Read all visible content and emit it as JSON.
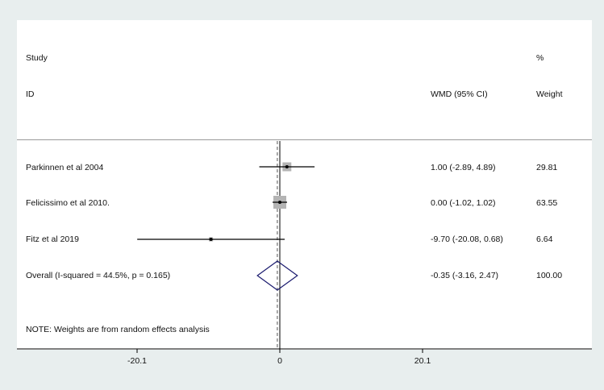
{
  "chart_data": {
    "type": "forest",
    "header": {
      "study_line1": "Study",
      "study_line2": "ID",
      "effect_header": "WMD (95% CI)",
      "weight_line1": "%",
      "weight_line2": "Weight"
    },
    "studies": [
      {
        "id": "Parkinnen et al  2004",
        "est": 1.0,
        "lo": -2.89,
        "hi": 4.89,
        "ci_text": "1.00 (-2.89, 4.89)",
        "weight": 29.81,
        "weight_text": "29.81"
      },
      {
        "id": "Felicissimo et al 2010.",
        "est": 0.0,
        "lo": -1.02,
        "hi": 1.02,
        "ci_text": "0.00 (-1.02, 1.02)",
        "weight": 63.55,
        "weight_text": "63.55"
      },
      {
        "id": "Fitz et al  2019",
        "est": -9.7,
        "lo": -20.08,
        "hi": 0.68,
        "ci_text": "-9.70 (-20.08, 0.68)",
        "weight": 6.64,
        "weight_text": "6.64"
      }
    ],
    "overall": {
      "label": "Overall  (I-squared = 44.5%, p = 0.165)",
      "est": -0.35,
      "lo": -3.16,
      "hi": 2.47,
      "ci_text": "-0.35 (-3.16, 2.47)",
      "weight_text": "100.00"
    },
    "note": "NOTE: Weights are from random effects analysis",
    "x_ticks": [
      {
        "value": -20.1,
        "label": "-20.1"
      },
      {
        "value": 0,
        "label": "0"
      },
      {
        "value": 20.1,
        "label": "20.1"
      }
    ],
    "null_line": 0
  },
  "colors": {
    "background": "#e8eeee",
    "panel": "#ffffff",
    "box": "#b4b4b4",
    "diamond": "#1a1a6e",
    "line": "#000000",
    "overall_dash": "#555555"
  }
}
